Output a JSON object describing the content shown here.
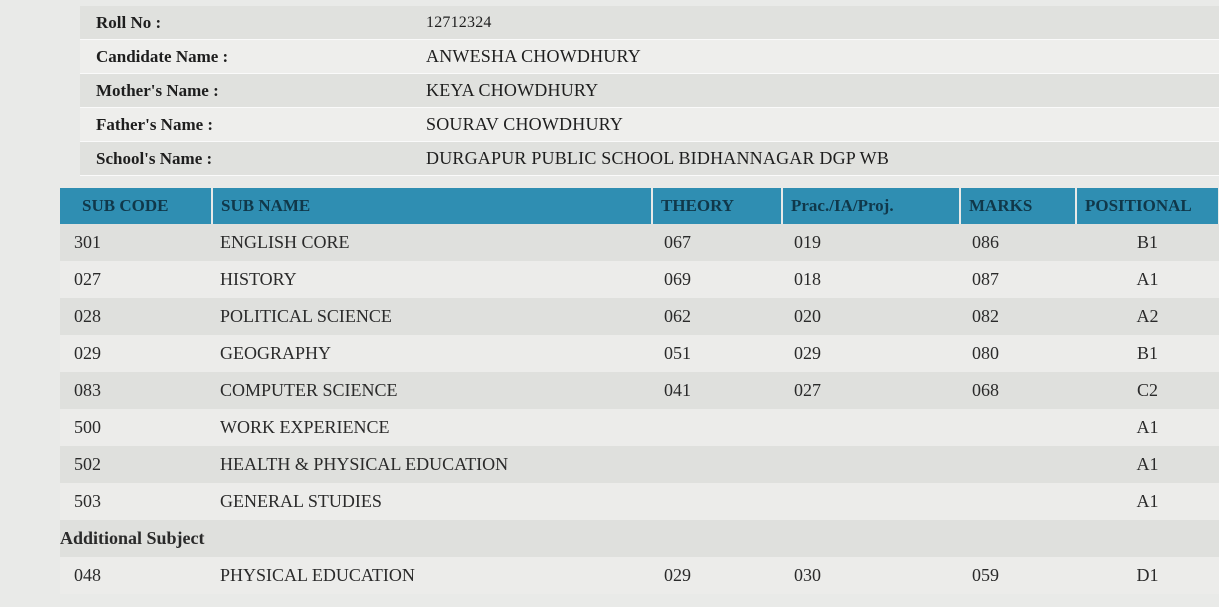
{
  "candidate": {
    "rows": [
      {
        "label": "Roll No :",
        "value": "12712324"
      },
      {
        "label": "Candidate Name :",
        "value": "ANWESHA CHOWDHURY"
      },
      {
        "label": "Mother's Name :",
        "value": "KEYA CHOWDHURY"
      },
      {
        "label": "Father's Name :",
        "value": "SOURAV CHOWDHURY"
      },
      {
        "label": "School's Name :",
        "value": "DURGAPUR PUBLIC SCHOOL BIDHANNAGAR DGP WB"
      }
    ]
  },
  "table": {
    "headers": [
      "SUB CODE",
      "SUB NAME",
      "THEORY",
      "Prac./IA/Proj.",
      "MARKS",
      "POSITIONAL"
    ],
    "rows": [
      {
        "code": "301",
        "name": "ENGLISH CORE",
        "theory": "067",
        "prac": "019",
        "marks": "086",
        "grade": "B1"
      },
      {
        "code": "027",
        "name": "HISTORY",
        "theory": "069",
        "prac": "018",
        "marks": "087",
        "grade": "A1"
      },
      {
        "code": "028",
        "name": "POLITICAL SCIENCE",
        "theory": "062",
        "prac": "020",
        "marks": "082",
        "grade": "A2"
      },
      {
        "code": "029",
        "name": "GEOGRAPHY",
        "theory": "051",
        "prac": "029",
        "marks": "080",
        "grade": "B1"
      },
      {
        "code": "083",
        "name": "COMPUTER SCIENCE",
        "theory": "041",
        "prac": "027",
        "marks": "068",
        "grade": "C2"
      },
      {
        "code": "500",
        "name": "WORK EXPERIENCE",
        "theory": "",
        "prac": "",
        "marks": "",
        "grade": "A1"
      },
      {
        "code": "502",
        "name": "HEALTH & PHYSICAL EDUCATION",
        "theory": "",
        "prac": "",
        "marks": "",
        "grade": "A1"
      },
      {
        "code": "503",
        "name": "GENERAL STUDIES",
        "theory": "",
        "prac": "",
        "marks": "",
        "grade": "A1"
      }
    ],
    "additional_label": "Additional Subject",
    "additional_rows": [
      {
        "code": "048",
        "name": "PHYSICAL EDUCATION",
        "theory": "029",
        "prac": "030",
        "marks": "059",
        "grade": "D1"
      }
    ]
  },
  "colors": {
    "header_bg": "#2f8eb2",
    "header_text": "#10384a",
    "row_odd": "#dfe0dd",
    "row_even": "#ececea"
  }
}
